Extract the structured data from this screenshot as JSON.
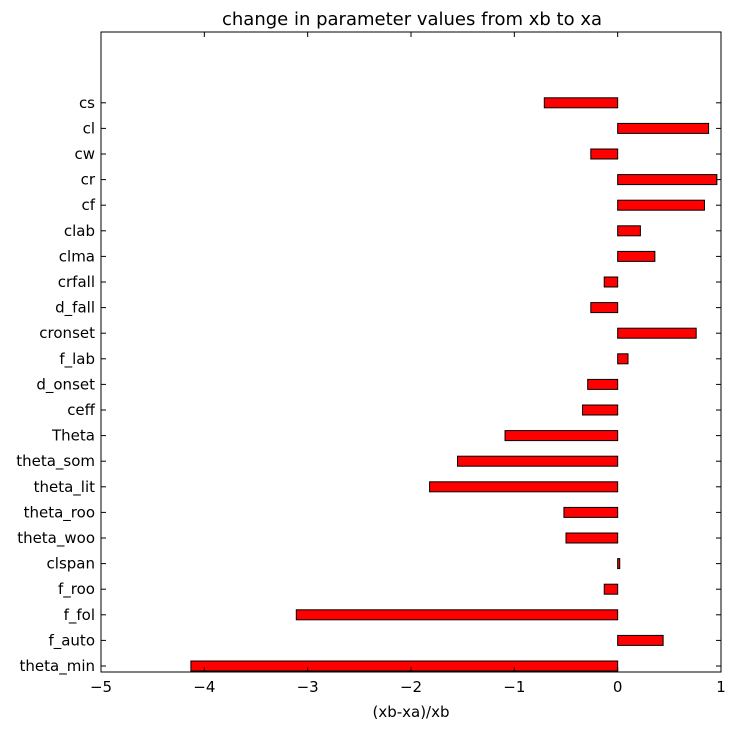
{
  "chart_data": {
    "type": "bar",
    "orientation": "horizontal",
    "title": "change in parameter values from xb to xa",
    "xlabel": "(xb-xa)/xb",
    "ylabel": "",
    "xlim": [
      -5,
      1
    ],
    "x_ticks": [
      -5,
      -4,
      -3,
      -2,
      -1,
      0,
      1
    ],
    "x_tick_labels": [
      "−5",
      "−4",
      "−3",
      "−2",
      "−1",
      "0",
      "1"
    ],
    "grid": false,
    "bar_color": "#ff0000",
    "edge_color": "#000000",
    "categories": [
      "theta_min",
      "f_auto",
      "f_fol",
      "f_roo",
      "clspan",
      "theta_woo",
      "theta_roo",
      "theta_lit",
      "theta_som",
      "Theta",
      "ceff",
      "d_onset",
      "f_lab",
      "cronset",
      "d_fall",
      "crfall",
      "clma",
      "clab",
      "cf",
      "cr",
      "cw",
      "cl",
      "cs"
    ],
    "values": [
      -4.13,
      0.44,
      -3.11,
      -0.13,
      0.02,
      -0.5,
      -0.52,
      -1.82,
      -1.55,
      -1.09,
      -0.34,
      -0.29,
      0.1,
      0.76,
      -0.26,
      -0.13,
      0.36,
      0.22,
      0.84,
      0.96,
      -0.26,
      0.88,
      -0.71
    ]
  }
}
